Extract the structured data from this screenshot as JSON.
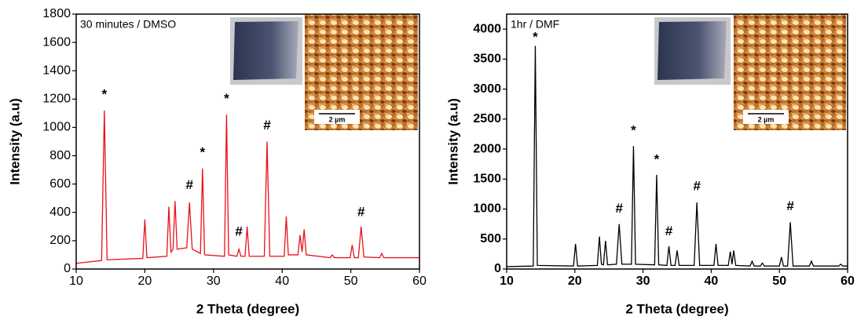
{
  "chart_data": [
    {
      "type": "line",
      "xlabel": "2 Theta (degree)",
      "ylabel": "Intensity (a.u)",
      "note": "30 minutes / DMSO",
      "scale_bar_label": "2 µm",
      "xlim": [
        10,
        60
      ],
      "xticks": [
        10,
        20,
        30,
        40,
        50,
        60
      ],
      "ylim": [
        0,
        1800
      ],
      "yticks": [
        0,
        200,
        400,
        600,
        800,
        1000,
        1200,
        1400,
        1600,
        1800
      ],
      "x": [
        10,
        13.7,
        14.1,
        14.5,
        19.7,
        20.0,
        20.3,
        23.2,
        23.5,
        23.8,
        24.1,
        24.4,
        24.7,
        26.1,
        26.5,
        26.9,
        28.1,
        28.4,
        28.7,
        31.6,
        31.9,
        32.2,
        33.4,
        33.7,
        34.0,
        34.6,
        34.9,
        35.2,
        37.4,
        37.8,
        38.2,
        40.3,
        40.6,
        40.9,
        42.3,
        42.6,
        42.9,
        43.2,
        43.5,
        47.0,
        47.3,
        47.6,
        49.9,
        50.2,
        50.5,
        51.1,
        51.5,
        51.9,
        54.2,
        54.5,
        54.8,
        60
      ],
      "series": [
        {
          "color": "#e8121a",
          "values": [
            40,
            60,
            1120,
            65,
            75,
            350,
            80,
            90,
            440,
            120,
            140,
            480,
            140,
            150,
            470,
            140,
            110,
            710,
            100,
            90,
            1090,
            100,
            90,
            140,
            90,
            90,
            300,
            90,
            90,
            900,
            90,
            90,
            370,
            100,
            100,
            240,
            120,
            280,
            100,
            80,
            100,
            80,
            80,
            170,
            80,
            80,
            300,
            85,
            80,
            110,
            80,
            80
          ]
        }
      ],
      "annotations": [
        {
          "text": "*",
          "x": 14.1,
          "y": 1230
        },
        {
          "text": "*",
          "x": 28.4,
          "y": 820
        },
        {
          "text": "*",
          "x": 31.9,
          "y": 1200
        },
        {
          "text": "#",
          "x": 26.5,
          "y": 590
        },
        {
          "text": "#",
          "x": 33.7,
          "y": 260
        },
        {
          "text": "#",
          "x": 37.8,
          "y": 1010
        },
        {
          "text": "#",
          "x": 51.5,
          "y": 400
        }
      ]
    },
    {
      "type": "line",
      "xlabel": "2 Theta (degree)",
      "ylabel": "Intensity (a.u)",
      "note": "1hr / DMF",
      "scale_bar_label": "2 µm",
      "xlim": [
        10,
        60
      ],
      "xticks": [
        10,
        20,
        30,
        40,
        50,
        60
      ],
      "ylim": [
        0,
        4250
      ],
      "yticks": [
        0,
        500,
        1000,
        1500,
        2000,
        2500,
        3000,
        3500,
        4000
      ],
      "x": [
        10,
        13.9,
        14.2,
        14.5,
        19.8,
        20.1,
        20.4,
        23.3,
        23.6,
        23.9,
        24.2,
        24.5,
        24.8,
        26.1,
        26.5,
        26.9,
        28.3,
        28.6,
        28.9,
        31.7,
        32.0,
        32.3,
        33.5,
        33.8,
        34.1,
        34.7,
        35.0,
        35.3,
        37.5,
        37.9,
        38.3,
        40.4,
        40.7,
        41.0,
        42.5,
        42.8,
        43.05,
        43.3,
        43.6,
        45.7,
        46.0,
        46.3,
        47.2,
        47.5,
        47.8,
        50.0,
        50.3,
        50.6,
        51.2,
        51.6,
        52.0,
        54.4,
        54.7,
        55.0,
        58.7,
        59.0,
        59.3,
        60
      ],
      "series": [
        {
          "color": "#000000",
          "values": [
            40,
            50,
            3720,
            60,
            50,
            420,
            50,
            60,
            540,
            80,
            70,
            470,
            70,
            80,
            750,
            80,
            80,
            2050,
            80,
            70,
            1570,
            70,
            60,
            380,
            60,
            60,
            310,
            60,
            60,
            1110,
            60,
            60,
            420,
            60,
            60,
            290,
            80,
            310,
            60,
            50,
            130,
            50,
            50,
            100,
            50,
            50,
            200,
            50,
            50,
            780,
            50,
            50,
            130,
            50,
            50,
            80,
            50,
            50
          ]
        }
      ],
      "annotations": [
        {
          "text": "*",
          "x": 14.2,
          "y": 3860
        },
        {
          "text": "*",
          "x": 28.6,
          "y": 2300
        },
        {
          "text": "*",
          "x": 32.0,
          "y": 1820
        },
        {
          "text": "#",
          "x": 26.5,
          "y": 1000
        },
        {
          "text": "#",
          "x": 33.8,
          "y": 620
        },
        {
          "text": "#",
          "x": 37.9,
          "y": 1370
        },
        {
          "text": "#",
          "x": 51.6,
          "y": 1040
        }
      ]
    }
  ]
}
